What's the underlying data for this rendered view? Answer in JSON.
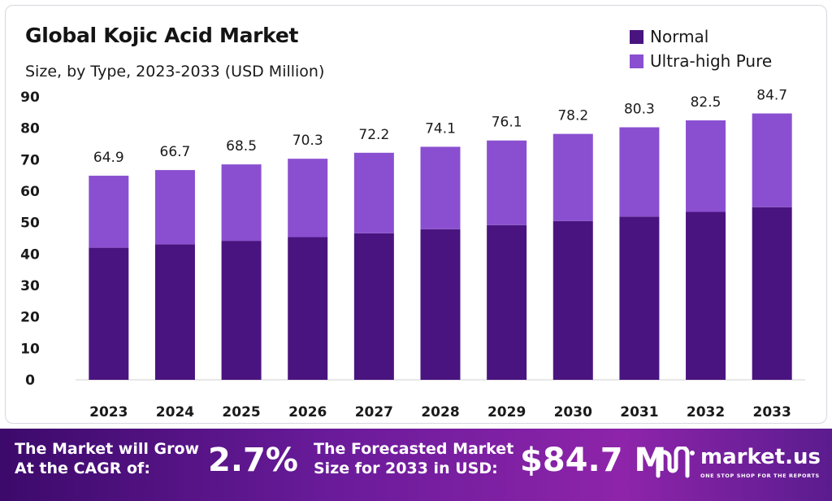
{
  "header": {
    "title": "Global Kojic Acid Market",
    "subtitle": "Size, by Type, 2023-2033 (USD Million)"
  },
  "legend": [
    {
      "label": "Normal",
      "color": "#4a1480"
    },
    {
      "label": "Ultra-high Pure",
      "color": "#8a4fd0"
    }
  ],
  "chart_data": {
    "type": "bar",
    "stacked": true,
    "title": "Global Kojic Acid Market",
    "subtitle": "Size, by Type, 2023-2033 (USD Million)",
    "categories": [
      "2023",
      "2024",
      "2025",
      "2026",
      "2027",
      "2028",
      "2029",
      "2030",
      "2031",
      "2032",
      "2033"
    ],
    "series": [
      {
        "name": "Normal",
        "color": "#4a1480",
        "values": [
          42.0,
          43.1,
          44.2,
          45.4,
          46.6,
          47.9,
          49.2,
          50.5,
          51.9,
          53.4,
          54.9
        ]
      },
      {
        "name": "Ultra-high Pure",
        "color": "#8a4fd0",
        "values": [
          22.9,
          23.6,
          24.3,
          24.9,
          25.6,
          26.2,
          26.9,
          27.7,
          28.4,
          29.1,
          29.8
        ]
      }
    ],
    "totals": [
      "64.9",
      "66.7",
      "68.5",
      "70.3",
      "72.2",
      "74.1",
      "76.1",
      "78.2",
      "80.3",
      "82.5",
      "84.7"
    ],
    "ylim": [
      0,
      90
    ],
    "yticks": [
      0,
      10,
      20,
      30,
      40,
      50,
      60,
      70,
      80,
      90
    ],
    "xlabel": "",
    "ylabel": "",
    "grid": false,
    "legend_position": "top-right"
  },
  "footer": {
    "cagr_label_line1": "The Market will Grow",
    "cagr_label_line2": "At the CAGR of:",
    "cagr_value": "2.7%",
    "forecast_label_line1": "The Forecasted Market",
    "forecast_label_line2": "Size for 2033 in USD:",
    "forecast_value": "$84.7 M",
    "brand_name": "market.us",
    "brand_tagline": "ONE STOP SHOP FOR THE REPORTS"
  }
}
